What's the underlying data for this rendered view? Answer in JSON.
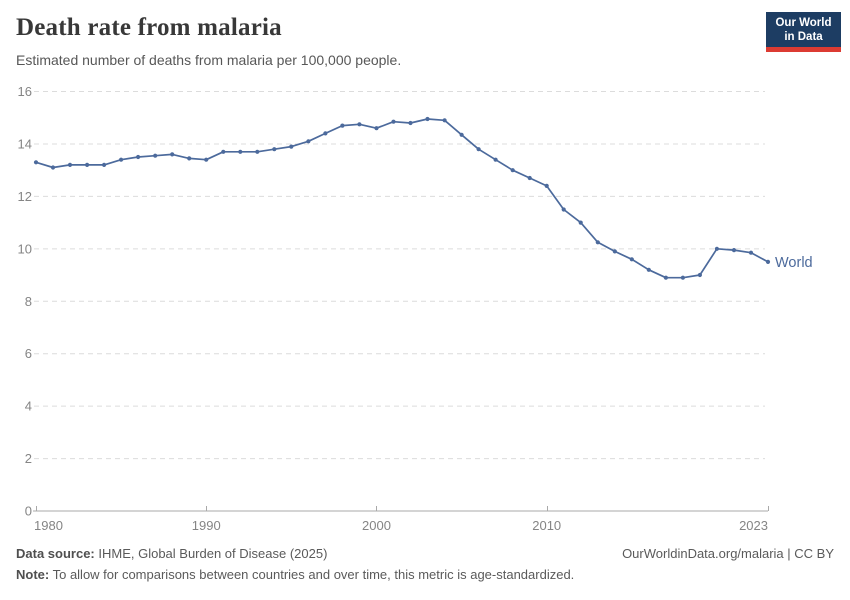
{
  "header": {
    "title": "Death rate from malaria",
    "subtitle": "Estimated number of deaths from malaria per 100,000 people."
  },
  "logo": {
    "line1": "Our World",
    "line2": "in Data",
    "bg_color": "#1d3d63",
    "stripe_color": "#dc3b32",
    "text_color": "#ffffff"
  },
  "chart_data": {
    "type": "line",
    "title": "Death rate from malaria",
    "xlabel": "",
    "ylabel": "",
    "xlim": [
      1980,
      2023
    ],
    "ylim": [
      0,
      16
    ],
    "xticks": [
      1980,
      1990,
      2000,
      2010,
      2023
    ],
    "yticks": [
      0,
      2,
      4,
      6,
      8,
      10,
      12,
      14,
      16
    ],
    "grid": "dashed-horizontal",
    "legend": "end-of-line-label",
    "colors": {
      "axis": "#a9a9a9",
      "gridline": "#dcdcdc",
      "tick_label": "#858585"
    },
    "series": [
      {
        "name": "World",
        "color": "#4C6A9C",
        "x": [
          1980,
          1981,
          1982,
          1983,
          1984,
          1985,
          1986,
          1987,
          1988,
          1989,
          1990,
          1991,
          1992,
          1993,
          1994,
          1995,
          1996,
          1997,
          1998,
          1999,
          2000,
          2001,
          2002,
          2003,
          2004,
          2005,
          2006,
          2007,
          2008,
          2009,
          2010,
          2011,
          2012,
          2013,
          2014,
          2015,
          2016,
          2017,
          2018,
          2019,
          2020,
          2021,
          2022,
          2023
        ],
        "values": [
          13.3,
          13.1,
          13.2,
          13.2,
          13.2,
          13.4,
          13.5,
          13.55,
          13.6,
          13.45,
          13.4,
          13.7,
          13.7,
          13.7,
          13.8,
          13.9,
          14.1,
          14.4,
          14.7,
          14.75,
          14.6,
          14.85,
          14.8,
          14.95,
          14.9,
          14.35,
          13.8,
          13.4,
          13.0,
          12.7,
          12.4,
          11.5,
          11.0,
          10.25,
          9.9,
          9.6,
          9.2,
          8.9,
          8.9,
          9.0,
          10.0,
          9.95,
          9.85,
          9.5
        ]
      }
    ]
  },
  "footer": {
    "data_source_label": "Data source:",
    "data_source_text": " IHME, Global Burden of Disease (2025)",
    "right_text": "OurWorldinData.org/malaria | CC BY",
    "note_label": "Note:",
    "note_text": " To allow for comparisons between countries and over time, this metric is age-standardized."
  }
}
